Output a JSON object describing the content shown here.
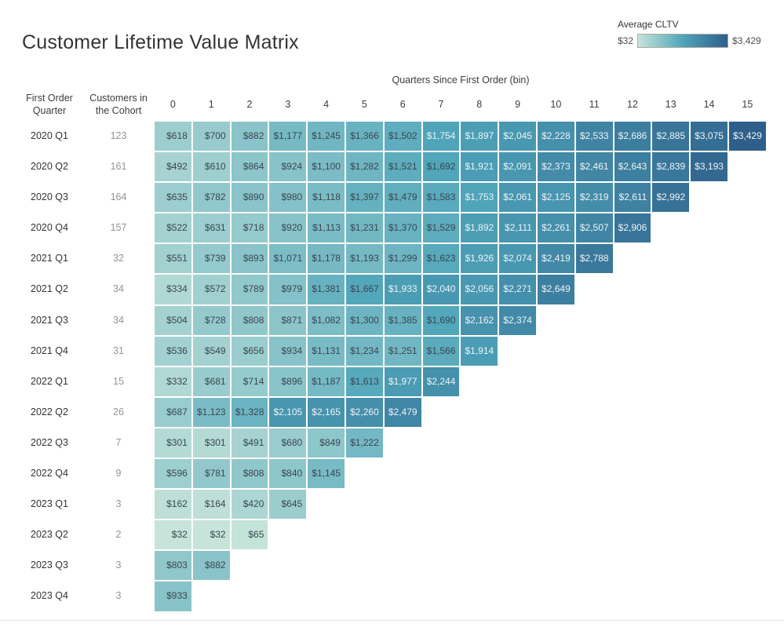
{
  "title": "Customer Lifetime Value Matrix",
  "legend": {
    "title": "Average CLTV",
    "min_label": "$32",
    "max_label": "$3,429"
  },
  "matrix": {
    "column_group_label": "Quarters Since First Order (bin)",
    "row_header": "First Order Quarter",
    "count_header": "Customers in the Cohort"
  },
  "scale": {
    "min": 32,
    "max": 3429,
    "gradient_stops": [
      "#c6e4da",
      "#4fa5ba",
      "#2e5f8a"
    ],
    "text_dark": "#3a4750",
    "text_light": "#eef3f6"
  },
  "chart_data": {
    "type": "heatmap",
    "title": "Customer Lifetime Value Matrix",
    "xlabel": "Quarters Since First Order (bin)",
    "ylabel": "First Order Quarter",
    "legend_title": "Average CLTV",
    "value_range": [
      32,
      3429
    ],
    "columns": [
      "0",
      "1",
      "2",
      "3",
      "4",
      "5",
      "6",
      "7",
      "8",
      "9",
      "10",
      "11",
      "12",
      "13",
      "14",
      "15"
    ],
    "rows": [
      {
        "quarter": "2020 Q1",
        "customers": 123,
        "values": [
          618,
          700,
          882,
          1177,
          1245,
          1366,
          1502,
          1754,
          1897,
          2045,
          2228,
          2533,
          2686,
          2885,
          3075,
          3429
        ]
      },
      {
        "quarter": "2020 Q2",
        "customers": 161,
        "values": [
          492,
          610,
          864,
          924,
          1100,
          1282,
          1521,
          1692,
          1921,
          2091,
          2373,
          2461,
          2643,
          2839,
          3193
        ]
      },
      {
        "quarter": "2020 Q3",
        "customers": 164,
        "values": [
          635,
          782,
          890,
          980,
          1118,
          1397,
          1479,
          1583,
          1753,
          2061,
          2125,
          2319,
          2611,
          2992
        ]
      },
      {
        "quarter": "2020 Q4",
        "customers": 157,
        "values": [
          522,
          631,
          718,
          920,
          1113,
          1231,
          1370,
          1529,
          1892,
          2111,
          2261,
          2507,
          2906
        ]
      },
      {
        "quarter": "2021 Q1",
        "customers": 32,
        "values": [
          551,
          739,
          893,
          1071,
          1178,
          1193,
          1299,
          1623,
          1926,
          2074,
          2419,
          2788
        ]
      },
      {
        "quarter": "2021 Q2",
        "customers": 34,
        "values": [
          334,
          572,
          789,
          979,
          1381,
          1667,
          1933,
          2040,
          2056,
          2271,
          2649
        ]
      },
      {
        "quarter": "2021 Q3",
        "customers": 34,
        "values": [
          504,
          728,
          808,
          871,
          1082,
          1300,
          1385,
          1690,
          2162,
          2374
        ]
      },
      {
        "quarter": "2021 Q4",
        "customers": 31,
        "values": [
          536,
          549,
          656,
          934,
          1131,
          1234,
          1251,
          1566,
          1914
        ]
      },
      {
        "quarter": "2022 Q1",
        "customers": 15,
        "values": [
          332,
          681,
          714,
          896,
          1187,
          1613,
          1977,
          2244
        ]
      },
      {
        "quarter": "2022 Q2",
        "customers": 26,
        "values": [
          687,
          1123,
          1328,
          2105,
          2165,
          2260,
          2479
        ]
      },
      {
        "quarter": "2022 Q3",
        "customers": 7,
        "values": [
          301,
          301,
          491,
          680,
          849,
          1222
        ]
      },
      {
        "quarter": "2022 Q4",
        "customers": 9,
        "values": [
          596,
          781,
          808,
          840,
          1145
        ]
      },
      {
        "quarter": "2023 Q1",
        "customers": 3,
        "values": [
          162,
          164,
          420,
          645
        ]
      },
      {
        "quarter": "2023 Q2",
        "customers": 2,
        "values": [
          32,
          32,
          65
        ]
      },
      {
        "quarter": "2023 Q3",
        "customers": 3,
        "values": [
          803,
          882
        ]
      },
      {
        "quarter": "2023 Q4",
        "customers": 3,
        "values": [
          933
        ]
      }
    ]
  }
}
